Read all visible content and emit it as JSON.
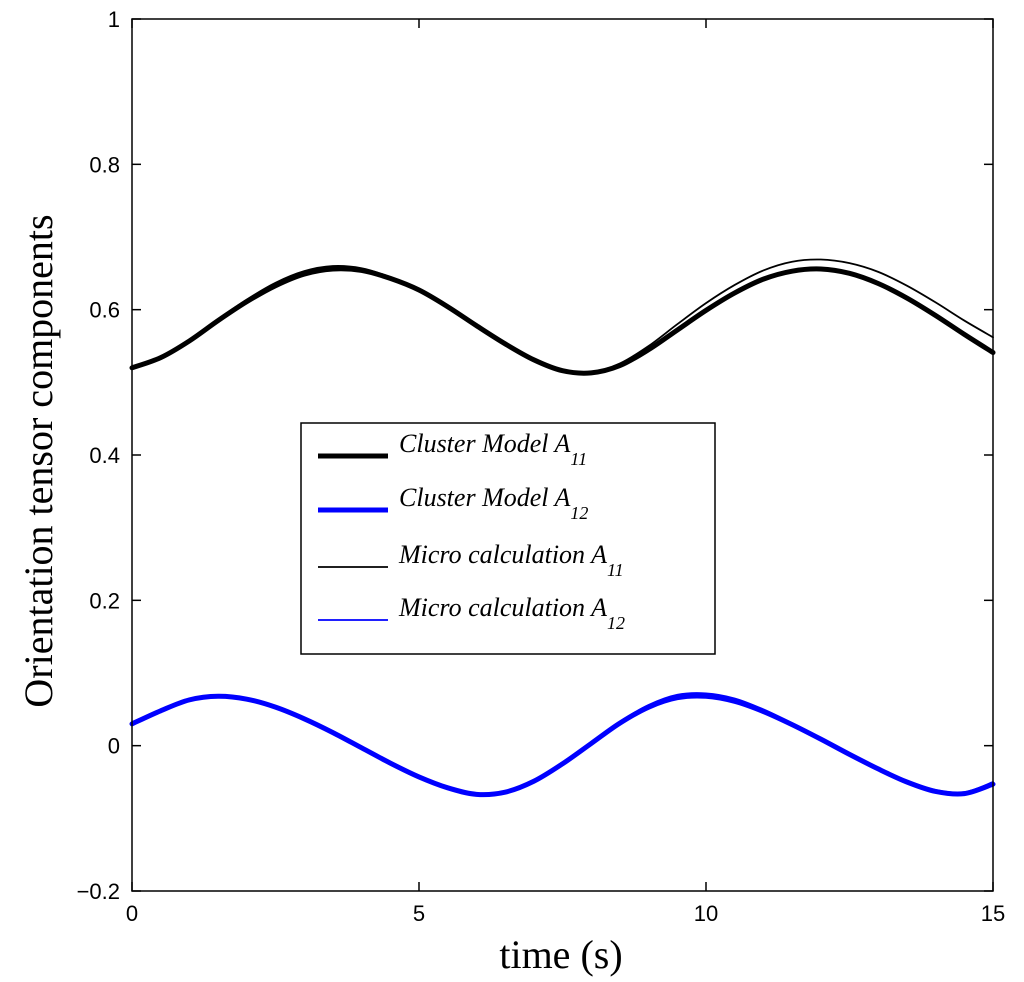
{
  "chart_data": {
    "type": "line",
    "xlabel": "time (s)",
    "ylabel": "Orientation tensor components",
    "xlim": [
      0,
      15
    ],
    "ylim": [
      -0.2,
      1
    ],
    "xticks": [
      0,
      5,
      10,
      15
    ],
    "xtick_labels": [
      "0",
      "5",
      "10",
      "15"
    ],
    "yticks": [
      -0.2,
      0,
      0.2,
      0.4,
      0.6,
      0.8,
      1
    ],
    "ytick_labels": [
      "−0.2",
      "0",
      "0.2",
      "0.4",
      "0.6",
      "0.8",
      "1"
    ],
    "grid": false,
    "legend_position": "center-left",
    "x": [
      0,
      0.5,
      1,
      1.5,
      2,
      2.5,
      3,
      3.5,
      4,
      4.5,
      5,
      5.5,
      6,
      6.5,
      7,
      7.5,
      8,
      8.5,
      9,
      9.5,
      10,
      10.5,
      11,
      11.5,
      12,
      12.5,
      13,
      13.5,
      14,
      14.5,
      15
    ],
    "series": [
      {
        "name": "Cluster Model A11",
        "label_main": "Cluster Model A",
        "label_sub": "11",
        "color": "#000000",
        "style": "thick",
        "values": [
          0.52,
          0.534,
          0.557,
          0.585,
          0.611,
          0.633,
          0.649,
          0.656,
          0.654,
          0.643,
          0.627,
          0.604,
          0.578,
          0.553,
          0.531,
          0.516,
          0.513,
          0.523,
          0.545,
          0.572,
          0.599,
          0.623,
          0.642,
          0.653,
          0.656,
          0.65,
          0.636,
          0.616,
          0.592,
          0.566,
          0.541
        ]
      },
      {
        "name": "Cluster Model A12",
        "label_main": "Cluster Model A",
        "label_sub": "12",
        "color": "#0000ff",
        "style": "thick",
        "values": [
          0.03,
          0.048,
          0.063,
          0.068,
          0.064,
          0.053,
          0.037,
          0.018,
          -0.003,
          -0.024,
          -0.043,
          -0.058,
          -0.067,
          -0.064,
          -0.049,
          -0.025,
          0.003,
          0.031,
          0.053,
          0.066,
          0.068,
          0.061,
          0.047,
          0.029,
          0.009,
          -0.012,
          -0.032,
          -0.05,
          -0.063,
          -0.066,
          -0.053
        ]
      },
      {
        "name": "Micro calculation A11",
        "label_main": "Micro calculation A",
        "label_sub": "11",
        "color": "#000000",
        "style": "thin",
        "values": [
          0.52,
          0.535,
          0.558,
          0.587,
          0.614,
          0.637,
          0.653,
          0.66,
          0.657,
          0.645,
          0.628,
          0.605,
          0.579,
          0.554,
          0.532,
          0.517,
          0.514,
          0.526,
          0.55,
          0.58,
          0.609,
          0.634,
          0.654,
          0.666,
          0.669,
          0.664,
          0.652,
          0.633,
          0.61,
          0.585,
          0.562
        ]
      },
      {
        "name": "Micro calculation A12",
        "label_main": "Micro calculation A",
        "label_sub": "12",
        "color": "#0000ff",
        "style": "thin",
        "values": [
          0.03,
          0.049,
          0.064,
          0.069,
          0.065,
          0.054,
          0.038,
          0.019,
          -0.002,
          -0.023,
          -0.042,
          -0.057,
          -0.066,
          -0.063,
          -0.048,
          -0.024,
          0.004,
          0.033,
          0.056,
          0.07,
          0.072,
          0.065,
          0.05,
          0.031,
          0.01,
          -0.011,
          -0.031,
          -0.049,
          -0.061,
          -0.064,
          -0.05
        ]
      }
    ]
  }
}
